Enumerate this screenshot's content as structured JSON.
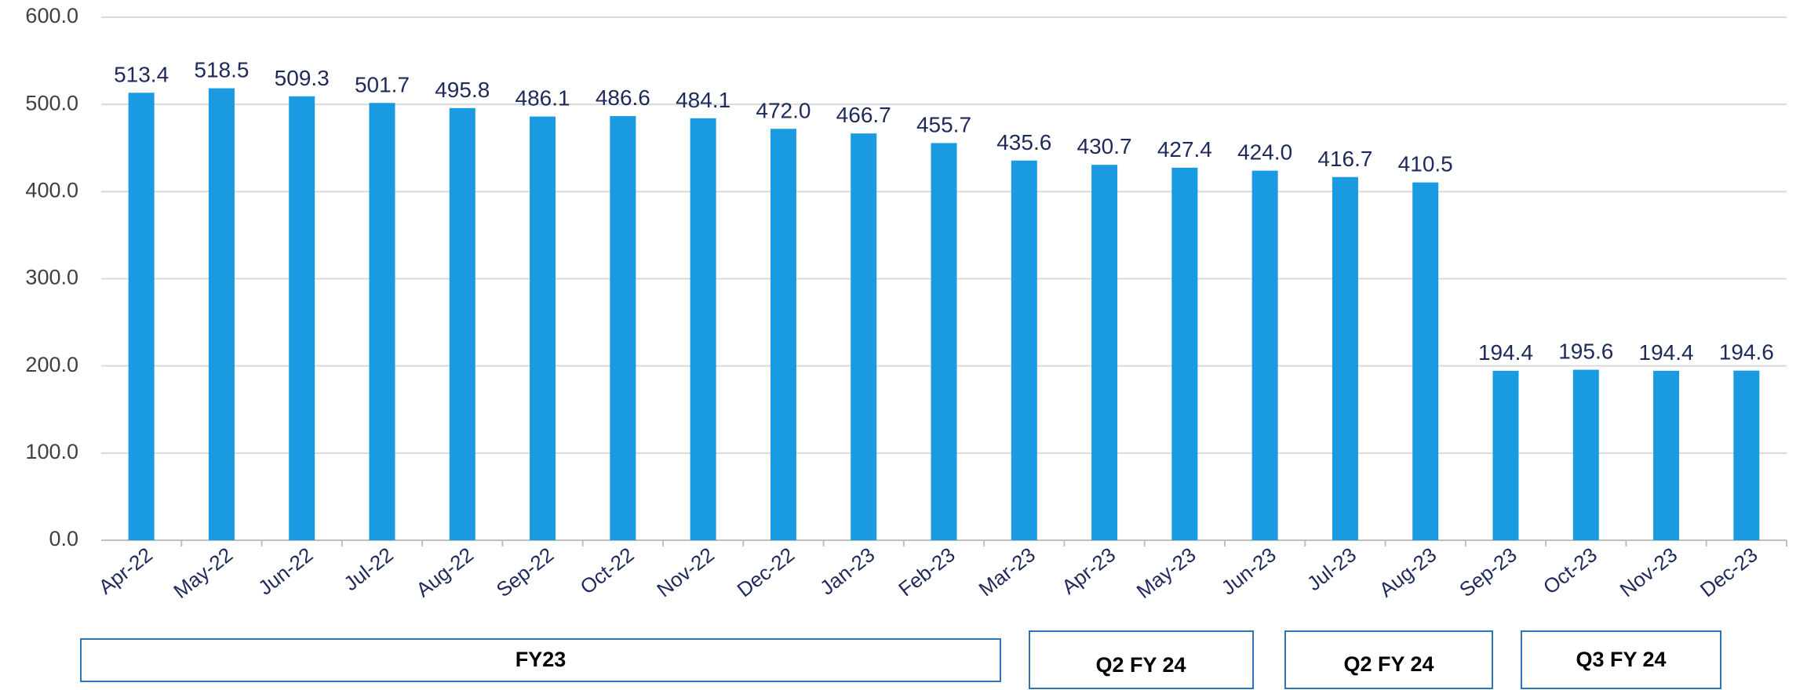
{
  "chart_data": {
    "type": "bar",
    "categories": [
      "Apr-22",
      "May-22",
      "Jun-22",
      "Jul-22",
      "Aug-22",
      "Sep-22",
      "Oct-22",
      "Nov-22",
      "Dec-22",
      "Jan-23",
      "Feb-23",
      "Mar-23",
      "Apr-23",
      "May-23",
      "Jun-23",
      "Jul-23",
      "Aug-23",
      "Sep-23",
      "Oct-23",
      "Nov-23",
      "Dec-23"
    ],
    "values": [
      513.4,
      518.5,
      509.3,
      501.7,
      495.8,
      486.1,
      486.6,
      484.1,
      472.0,
      466.7,
      455.7,
      435.6,
      430.7,
      427.4,
      424.0,
      416.7,
      410.5,
      194.4,
      195.6,
      194.4,
      194.6
    ],
    "value_labels": [
      "513.4",
      "518.5",
      "509.3",
      "501.7",
      "495.8",
      "486.1",
      "486.6",
      "484.1",
      "472.0",
      "466.7",
      "455.7",
      "435.6",
      "430.7",
      "427.4",
      "424.0",
      "416.7",
      "410.5",
      "194.4",
      "195.6",
      "194.4",
      "194.6"
    ],
    "color": "#1a9ae0",
    "ylim": [
      0,
      600
    ],
    "yticks": [
      {
        "value": 0,
        "label": "0.0"
      },
      {
        "value": 100,
        "label": "100.0"
      },
      {
        "value": 200,
        "label": "200.0"
      },
      {
        "value": 300,
        "label": "300.0"
      },
      {
        "value": 400,
        "label": "400.0"
      },
      {
        "value": 500,
        "label": "500.0"
      },
      {
        "value": 600,
        "label": "600.0"
      }
    ],
    "grid": true,
    "groups": [
      "FY23",
      "Q2 FY 24",
      "Q2 FY 24",
      "Q3 FY 24"
    ]
  }
}
